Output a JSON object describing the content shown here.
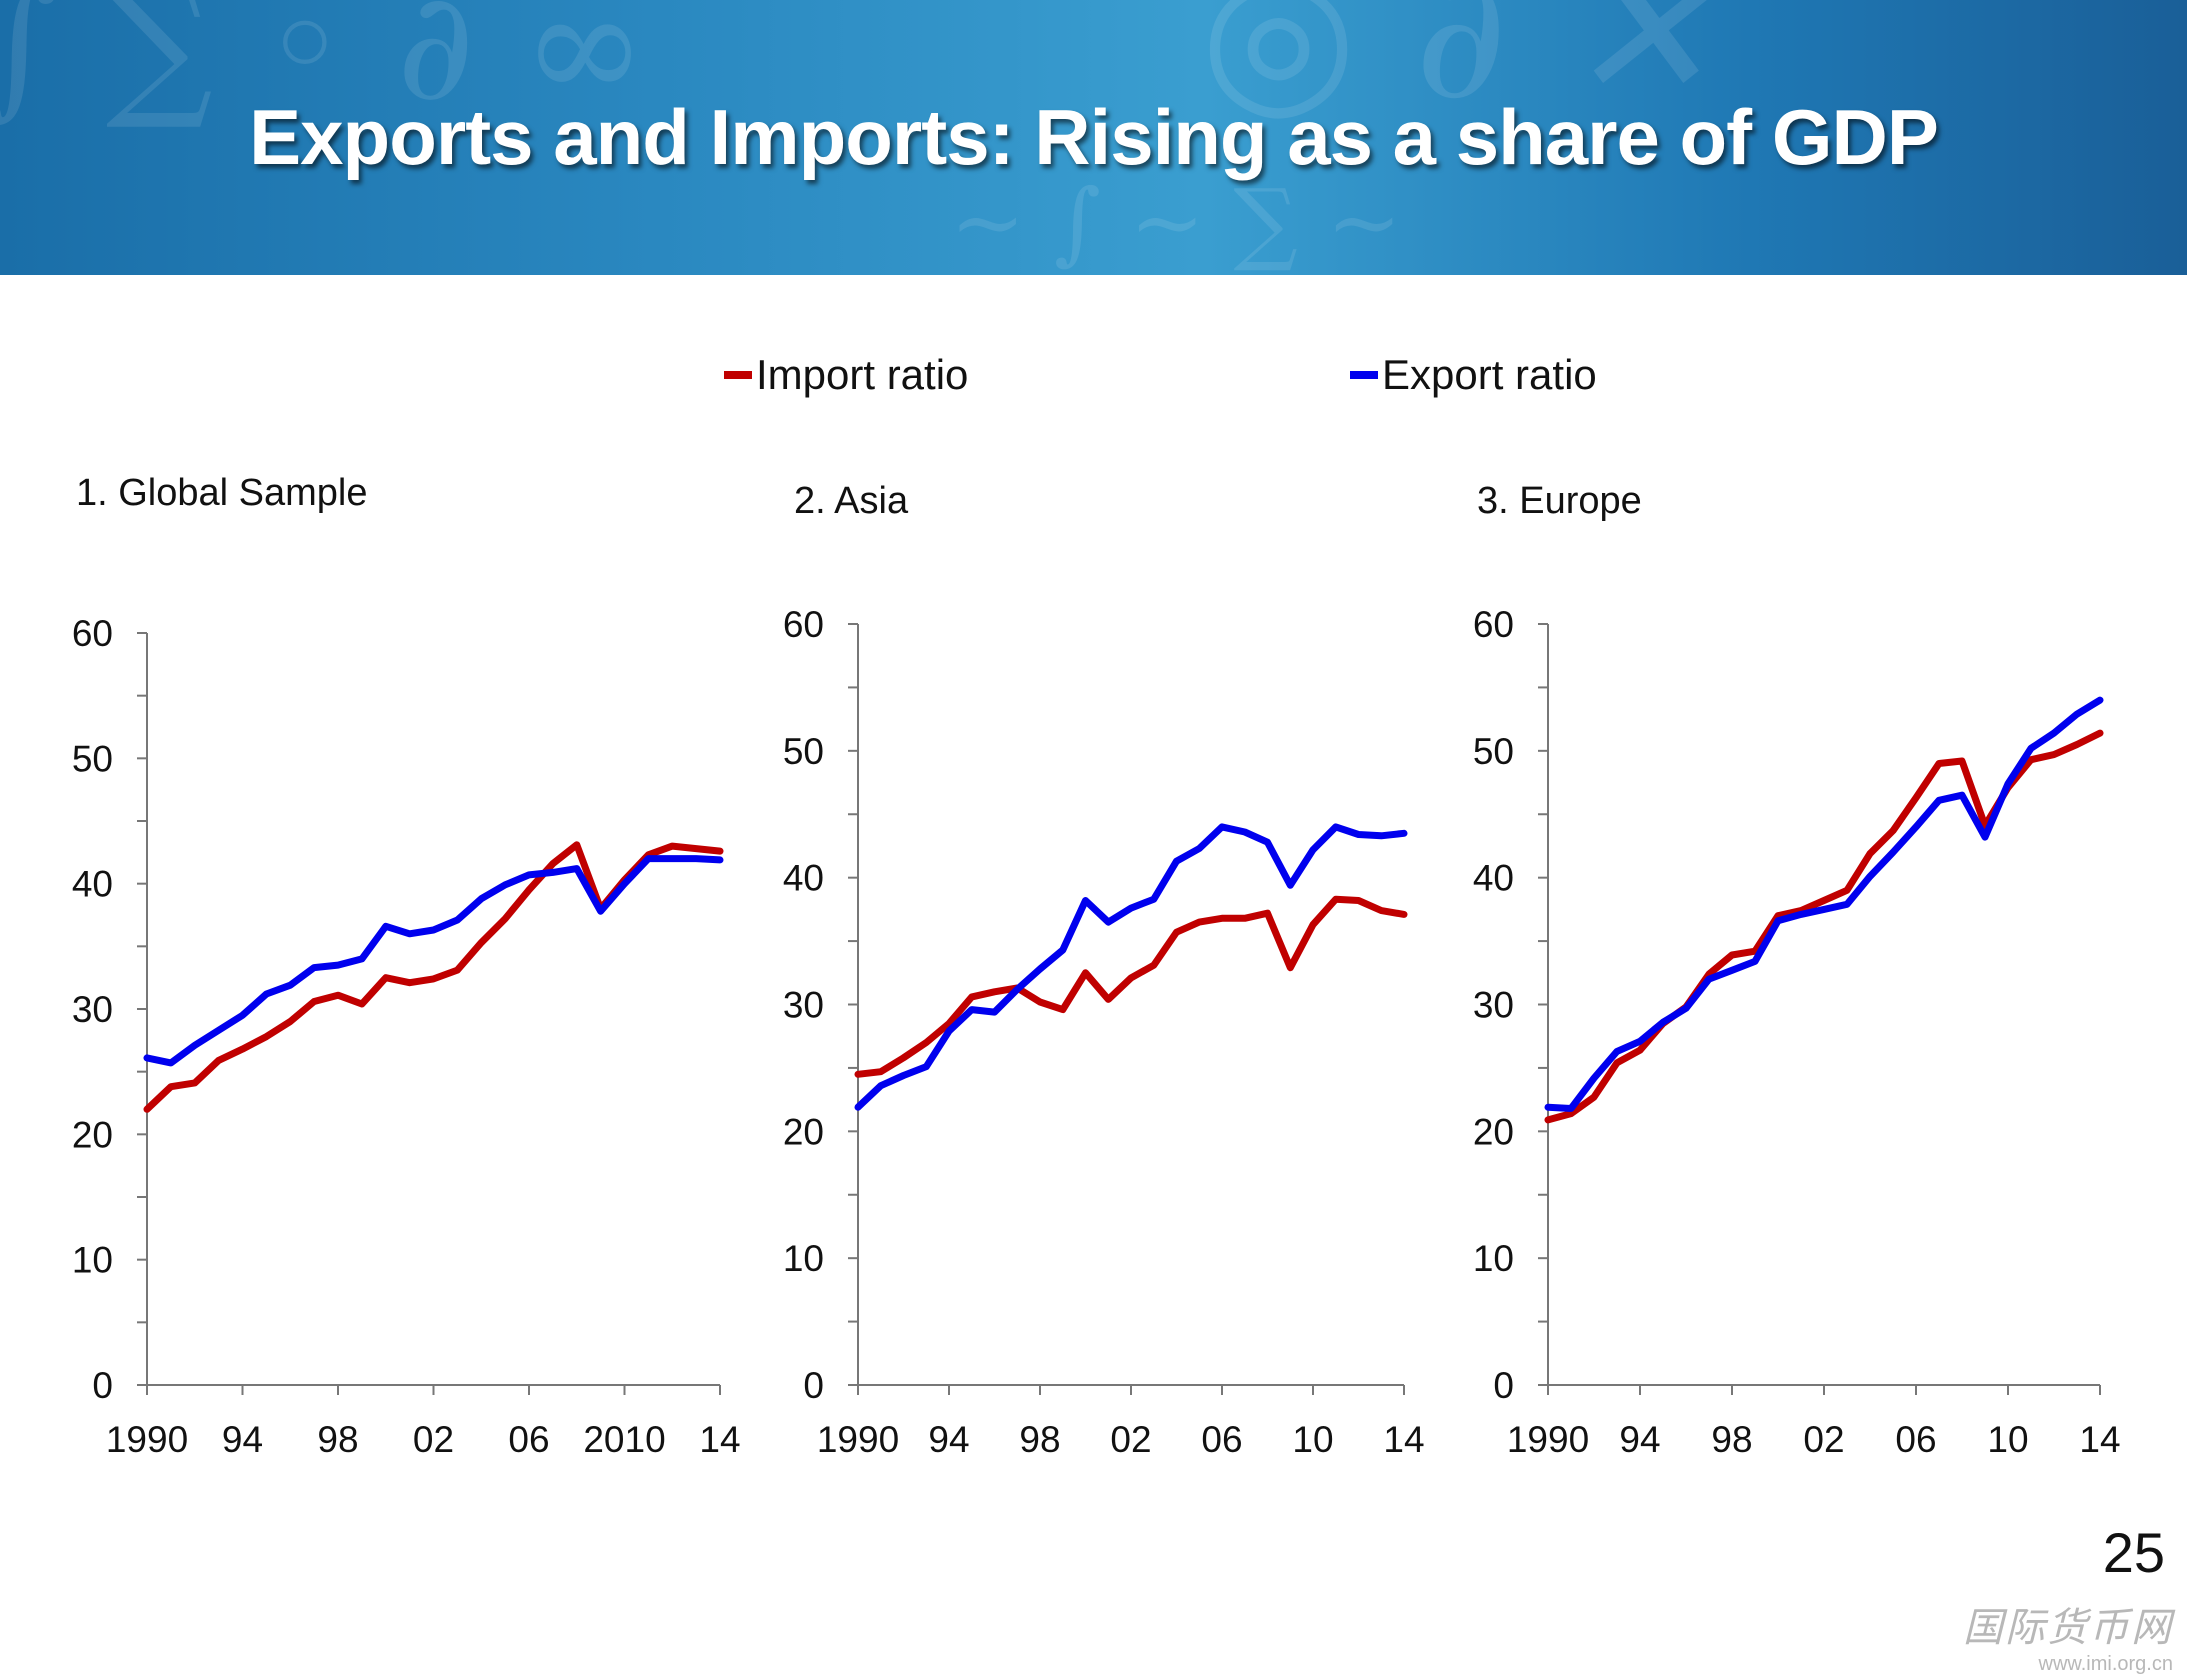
{
  "slide": {
    "title": "Exports and Imports:  Rising as a share of GDP",
    "page_number": "25",
    "watermark": {
      "name": "国际货币网",
      "url": "www.imi.org.cn"
    }
  },
  "legend": [
    {
      "label": "Import ratio",
      "color": "#c00000"
    },
    {
      "label": "Export ratio",
      "color": "#0000ee"
    }
  ],
  "chart_data": [
    {
      "type": "line",
      "title": "1. Global Sample",
      "ylim": [
        0,
        60
      ],
      "yticks": [
        "0",
        "10",
        "20",
        "30",
        "40",
        "50",
        "60"
      ],
      "xlim": [
        1990,
        2014
      ],
      "xticks": [
        {
          "year": 1990,
          "label": "1990"
        },
        {
          "year": 1994,
          "label": "94"
        },
        {
          "year": 1998,
          "label": "98"
        },
        {
          "year": 2002,
          "label": "02"
        },
        {
          "year": 2006,
          "label": "06"
        },
        {
          "year": 2010,
          "label": "2010"
        },
        {
          "year": 2014,
          "label": "14"
        }
      ],
      "x": [
        1990,
        1991,
        1992,
        1993,
        1994,
        1995,
        1996,
        1997,
        1998,
        1999,
        2000,
        2001,
        2002,
        2003,
        2004,
        2005,
        2006,
        2007,
        2008,
        2009,
        2010,
        2011,
        2012,
        2013,
        2014
      ],
      "series": [
        {
          "name": "Import ratio",
          "color": "#c00000",
          "values": [
            22.0,
            23.8,
            24.1,
            25.9,
            26.8,
            27.8,
            29.0,
            30.6,
            31.1,
            30.4,
            32.5,
            32.1,
            32.4,
            33.1,
            35.3,
            37.2,
            39.5,
            41.6,
            43.1,
            38.0,
            40.3,
            42.3,
            43.0,
            42.8,
            42.6
          ]
        },
        {
          "name": "Export ratio",
          "color": "#0000ee",
          "values": [
            26.1,
            25.7,
            27.1,
            28.3,
            29.5,
            31.2,
            31.9,
            33.3,
            33.5,
            34.0,
            36.6,
            36.0,
            36.3,
            37.1,
            38.8,
            39.9,
            40.7,
            40.9,
            41.2,
            37.8,
            40.0,
            42.0,
            42.0,
            42.0,
            41.9
          ]
        }
      ]
    },
    {
      "type": "line",
      "title": "2. Asia",
      "ylim": [
        0,
        60
      ],
      "yticks": [
        "0",
        "10",
        "20",
        "30",
        "40",
        "50",
        "60"
      ],
      "xlim": [
        1990,
        2014
      ],
      "xticks": [
        {
          "year": 1990,
          "label": "1990"
        },
        {
          "year": 1994,
          "label": "94"
        },
        {
          "year": 1998,
          "label": "98"
        },
        {
          "year": 2002,
          "label": "02"
        },
        {
          "year": 2006,
          "label": "06"
        },
        {
          "year": 2010,
          "label": "10"
        },
        {
          "year": 2014,
          "label": "14"
        }
      ],
      "x": [
        1990,
        1991,
        1992,
        1993,
        1994,
        1995,
        1996,
        1997,
        1998,
        1999,
        2000,
        2001,
        2002,
        2003,
        2004,
        2005,
        2006,
        2007,
        2008,
        2009,
        2010,
        2011,
        2012,
        2013,
        2014
      ],
      "series": [
        {
          "name": "Import ratio",
          "color": "#c00000",
          "values": [
            24.5,
            24.7,
            25.8,
            27.0,
            28.5,
            30.6,
            31.0,
            31.3,
            30.2,
            29.6,
            32.5,
            30.4,
            32.1,
            33.1,
            35.7,
            36.5,
            36.8,
            36.8,
            37.2,
            32.9,
            36.3,
            38.3,
            38.2,
            37.4,
            37.1
          ]
        },
        {
          "name": "Export ratio",
          "color": "#0000ee",
          "values": [
            21.9,
            23.6,
            24.4,
            25.1,
            27.9,
            29.6,
            29.4,
            31.2,
            32.8,
            34.3,
            38.2,
            36.5,
            37.6,
            38.3,
            41.3,
            42.3,
            44.0,
            43.6,
            42.8,
            39.4,
            42.2,
            44.0,
            43.4,
            43.3,
            43.5
          ]
        }
      ]
    },
    {
      "type": "line",
      "title": "3. Europe",
      "ylim": [
        0,
        60
      ],
      "yticks": [
        "0",
        "10",
        "20",
        "30",
        "40",
        "50",
        "60"
      ],
      "xlim": [
        1990,
        2014
      ],
      "xticks": [
        {
          "year": 1990,
          "label": "1990"
        },
        {
          "year": 1994,
          "label": "94"
        },
        {
          "year": 1998,
          "label": "98"
        },
        {
          "year": 2002,
          "label": "02"
        },
        {
          "year": 2006,
          "label": "06"
        },
        {
          "year": 2010,
          "label": "10"
        },
        {
          "year": 2014,
          "label": "14"
        }
      ],
      "x": [
        1990,
        1991,
        1992,
        1993,
        1994,
        1995,
        1996,
        1997,
        1998,
        1999,
        2000,
        2001,
        2002,
        2003,
        2004,
        2005,
        2006,
        2007,
        2008,
        2009,
        2010,
        2011,
        2012,
        2013,
        2014
      ],
      "series": [
        {
          "name": "Import ratio",
          "color": "#c00000",
          "values": [
            20.9,
            21.4,
            22.7,
            25.4,
            26.4,
            28.5,
            29.8,
            32.4,
            33.9,
            34.2,
            37.0,
            37.4,
            38.2,
            39.0,
            41.9,
            43.7,
            46.3,
            49.0,
            49.2,
            44.1,
            47.1,
            49.3,
            49.7,
            50.5,
            51.4
          ]
        },
        {
          "name": "Export ratio",
          "color": "#0000ee",
          "values": [
            21.9,
            21.8,
            24.2,
            26.3,
            27.1,
            28.6,
            29.7,
            32.0,
            32.7,
            33.4,
            36.6,
            37.1,
            37.5,
            37.9,
            40.1,
            42.0,
            44.0,
            46.1,
            46.5,
            43.2,
            47.4,
            50.2,
            51.4,
            52.9,
            54.0
          ]
        }
      ]
    }
  ]
}
